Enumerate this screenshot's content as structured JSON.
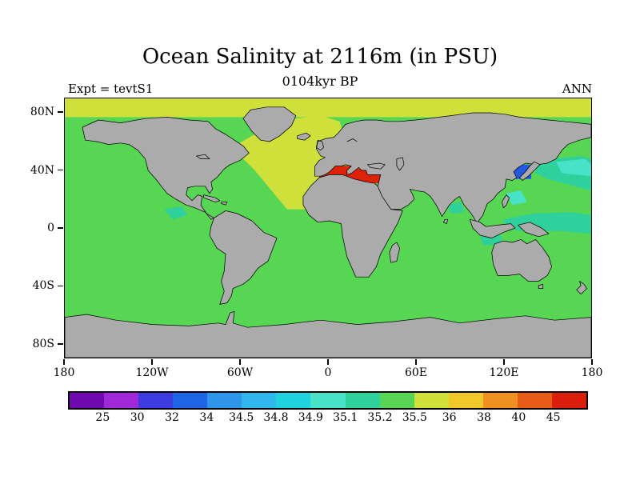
{
  "chart_data": {
    "type": "heatmap",
    "title": "Ocean Salinity at 2116m (in PSU)",
    "subtitle": "0104kyr BP",
    "experiment": "Expt = tevtS1",
    "season": "ANN",
    "units": "PSU",
    "x_ticks": [
      "180",
      "120W",
      "60W",
      "0",
      "60E",
      "120E",
      "180"
    ],
    "y_ticks": [
      "80N",
      "40N",
      "0",
      "40S",
      "80S"
    ],
    "colorbar_levels": [
      "25",
      "30",
      "32",
      "34",
      "34.5",
      "34.8",
      "34.9",
      "35.1",
      "35.2",
      "35.5",
      "36",
      "38",
      "40",
      "45"
    ],
    "colorbar_colors": [
      "#7008b0",
      "#a128d8",
      "#3c3ce0",
      "#1e64e6",
      "#2e96ea",
      "#30b8ee",
      "#20d2de",
      "#48e2c8",
      "#2ed09c",
      "#57d653",
      "#cfe03a",
      "#f0c829",
      "#f09021",
      "#e85c15",
      "#dc1e0c"
    ],
    "map_colors": {
      "land": "#ababab",
      "coastline": "#000000",
      "ocean_main": "#57d653",
      "atlantic_arctic": "#cfe03a",
      "mediterranean": "#dc2208",
      "japan_sea": "#2458e0",
      "pacific_teal": "#2ed09c",
      "pacific_cyan": "#48e2c8"
    },
    "regions": [
      {
        "name": "Deep ocean (global)",
        "salinity_psu": "35.2-35.5"
      },
      {
        "name": "North Atlantic and Arctic band",
        "salinity_psu": "35.5-36"
      },
      {
        "name": "Mediterranean Sea",
        "salinity_psu": ">45"
      },
      {
        "name": "Sea of Japan",
        "salinity_psu": "34-34.5"
      },
      {
        "name": "Northwest and tropical Pacific patches",
        "salinity_psu": "34.9-35.2"
      }
    ]
  }
}
